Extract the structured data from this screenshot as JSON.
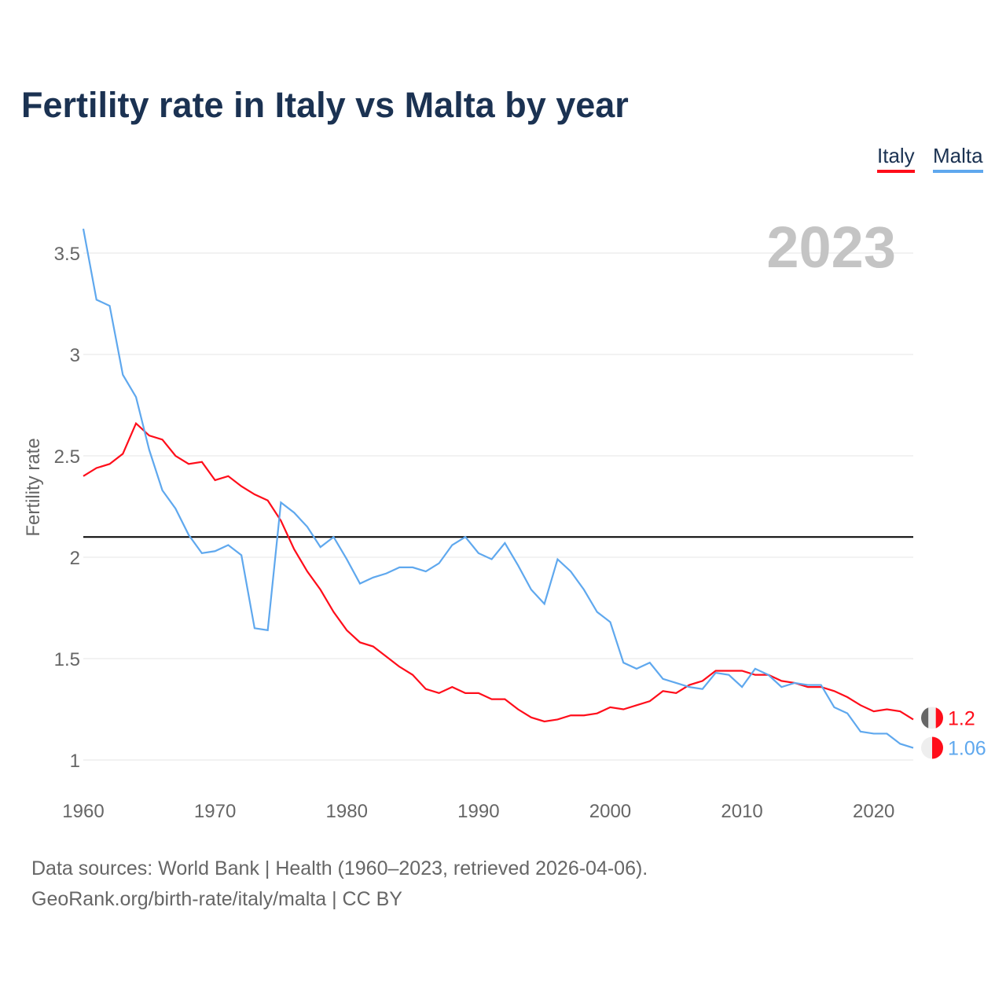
{
  "title": "Fertility rate in Italy vs Malta by year",
  "legend": [
    "Italy",
    "Malta"
  ],
  "year_label": "2023",
  "footer": {
    "line1": "Data sources: World Bank | Health (1960–2023, retrieved 2026-04-06).",
    "line2": "GeoRank.org/birth-rate/italy/malta | CC BY"
  },
  "end_labels": {
    "italy": "1.2",
    "malta": "1.06"
  },
  "colors": {
    "italy": "#ff0d1a",
    "malta": "#5fa8ee"
  },
  "chart_data": {
    "type": "line",
    "title": "Fertility rate in Italy vs Malta by year",
    "xlabel": "",
    "ylabel": "Fertility rate",
    "xlim": [
      1960,
      2023
    ],
    "ylim": [
      1,
      3.62
    ],
    "xticks": [
      1960,
      1970,
      1980,
      1990,
      2000,
      2010,
      2020
    ],
    "yticks": [
      1,
      1.5,
      2,
      2.5,
      3,
      3.5
    ],
    "ytick_labels": [
      "1",
      "1.5",
      "2",
      "2.5",
      "3",
      "3.5"
    ],
    "grid": true,
    "legend_position": "top-right",
    "reference_line": 2.1,
    "x_start": 1960,
    "series": [
      {
        "name": "Italy",
        "values": [
          2.4,
          2.44,
          2.46,
          2.51,
          2.66,
          2.6,
          2.58,
          2.5,
          2.46,
          2.47,
          2.38,
          2.4,
          2.35,
          2.31,
          2.28,
          2.18,
          2.04,
          1.93,
          1.84,
          1.73,
          1.64,
          1.58,
          1.56,
          1.51,
          1.46,
          1.42,
          1.35,
          1.33,
          1.36,
          1.33,
          1.33,
          1.3,
          1.3,
          1.25,
          1.21,
          1.19,
          1.2,
          1.22,
          1.22,
          1.23,
          1.26,
          1.25,
          1.27,
          1.29,
          1.34,
          1.33,
          1.37,
          1.39,
          1.44,
          1.44,
          1.44,
          1.42,
          1.42,
          1.39,
          1.38,
          1.36,
          1.36,
          1.34,
          1.31,
          1.27,
          1.24,
          1.25,
          1.24,
          1.2
        ]
      },
      {
        "name": "Malta",
        "values": [
          3.62,
          3.27,
          3.24,
          2.9,
          2.79,
          2.53,
          2.33,
          2.24,
          2.11,
          2.02,
          2.03,
          2.06,
          2.01,
          1.65,
          1.64,
          2.27,
          2.22,
          2.15,
          2.05,
          2.1,
          1.99,
          1.87,
          1.9,
          1.92,
          1.95,
          1.95,
          1.93,
          1.97,
          2.06,
          2.1,
          2.02,
          1.99,
          2.07,
          1.96,
          1.84,
          1.77,
          1.99,
          1.93,
          1.84,
          1.73,
          1.68,
          1.48,
          1.45,
          1.48,
          1.4,
          1.38,
          1.36,
          1.35,
          1.43,
          1.42,
          1.36,
          1.45,
          1.42,
          1.36,
          1.38,
          1.37,
          1.37,
          1.26,
          1.23,
          1.14,
          1.13,
          1.13,
          1.08,
          1.06
        ]
      }
    ]
  }
}
